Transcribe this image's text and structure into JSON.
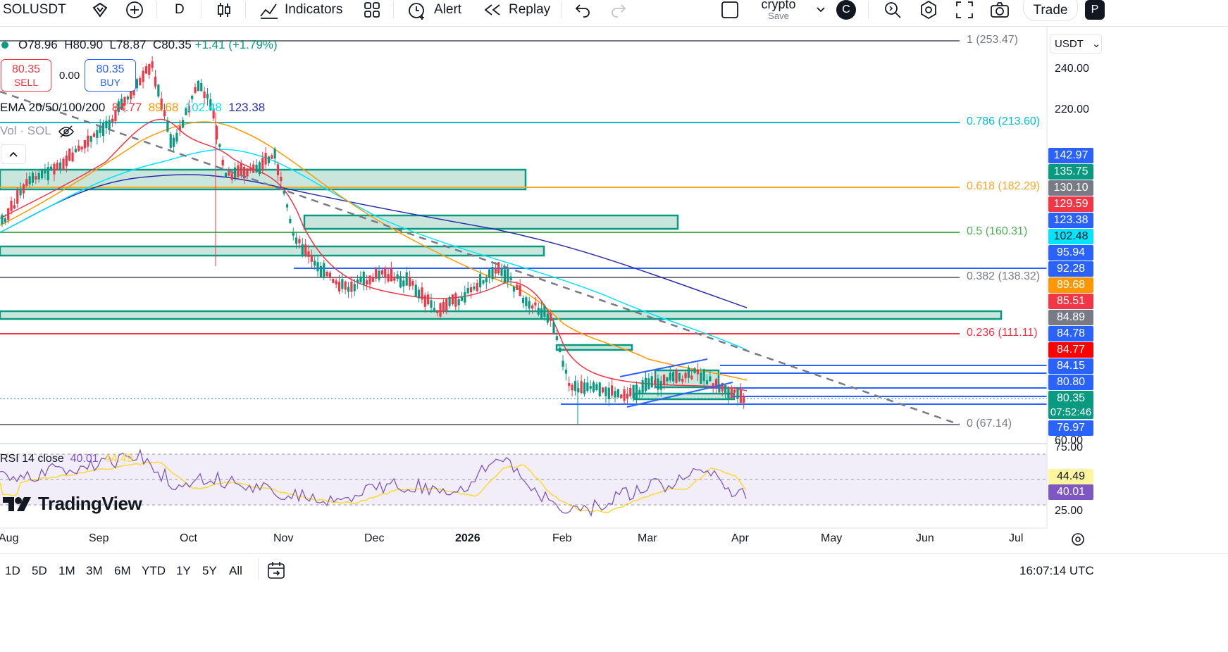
{
  "toolbar": {
    "symbol": "SOLUSDT",
    "interval": "D",
    "indicators_label": "Indicators",
    "alert_label": "Alert",
    "replay_label": "Replay",
    "layout_name": "crypto",
    "layout_save": "Save",
    "user_initial": "C",
    "trade_label": "Trade",
    "profile_initial": "P"
  },
  "legend": {
    "ohlc_o": "O78.96",
    "ohlc_h": "H80.90",
    "ohlc_l": "L78.87",
    "ohlc_c": "C80.35",
    "change": "+1.41 (+1.79%)",
    "sell_price": "80.35",
    "sell_label": "SELL",
    "spread": "0.00",
    "buy_price": "80.35",
    "buy_label": "BUY",
    "ema_label": "EMA 20/50/100/200",
    "ema20": "84.77",
    "ema50": "89.68",
    "ema100": "102.48",
    "ema200": "123.38",
    "vol_label": "Vol · SOL"
  },
  "price_axis": {
    "currency": "USDT",
    "ticks": [
      "240.00",
      "220.00",
      "60.00"
    ],
    "rsi_ticks": [
      "75.00",
      "25.00"
    ]
  },
  "price_labels": [
    {
      "text": "142.97",
      "color": "#2962ff"
    },
    {
      "text": "135.75",
      "color": "#089981"
    },
    {
      "text": "130.10",
      "color": "#787b86"
    },
    {
      "text": "129.59",
      "color": "#f23645"
    },
    {
      "text": "123.38",
      "color": "#2962ff"
    },
    {
      "text": "102.48",
      "color": "#00e5ff"
    },
    {
      "text": "95.94",
      "color": "#2962ff"
    },
    {
      "text": "92.28",
      "color": "#2962ff"
    },
    {
      "text": "89.68",
      "color": "#ff9800"
    },
    {
      "text": "85.51",
      "color": "#f23645"
    },
    {
      "text": "84.89",
      "color": "#787b86"
    },
    {
      "text": "84.78",
      "color": "#2962ff"
    },
    {
      "text": "84.77",
      "color": "#ff0000"
    },
    {
      "text": "84.15",
      "color": "#2962ff"
    },
    {
      "text": "80.80",
      "color": "#2962ff"
    },
    {
      "text": "80.35",
      "color": "#089981"
    },
    {
      "text": "07:52:46",
      "color": "#089981"
    },
    {
      "text": "76.97",
      "color": "#2962ff"
    }
  ],
  "fib_levels": [
    {
      "text": "1 (253.47)",
      "color": "#787b86"
    },
    {
      "text": "0.786 (213.60)",
      "color": "#00bcd4"
    },
    {
      "text": "0.618 (182.29)",
      "color": "#f9a825"
    },
    {
      "text": "0.5 (160.31)",
      "color": "#4caf50"
    },
    {
      "text": "0.382 (138.32)",
      "color": "#787b86"
    },
    {
      "text": "0.236 (111.11)",
      "color": "#f23645"
    },
    {
      "text": "0 (67.14)",
      "color": "#787b86"
    }
  ],
  "rsi": {
    "label": "RSI 14 close",
    "value": "40.01",
    "ma": "44.49",
    "label_value_ma": "44.49",
    "label_value": "40.01"
  },
  "watermark": "TradingView",
  "time_axis": [
    "Aug",
    "Sep",
    "Oct",
    "Nov",
    "Dec",
    "2026",
    "Feb",
    "Mar",
    "Apr",
    "May",
    "Jun",
    "Jul"
  ],
  "bottom": {
    "ranges": [
      "1D",
      "5D",
      "1M",
      "3M",
      "6M",
      "YTD",
      "1Y",
      "5Y",
      "All"
    ],
    "clock": "16:07:14 UTC"
  },
  "colors": {
    "up": "#089981",
    "down": "#f23645",
    "accent": "#2962ff"
  }
}
